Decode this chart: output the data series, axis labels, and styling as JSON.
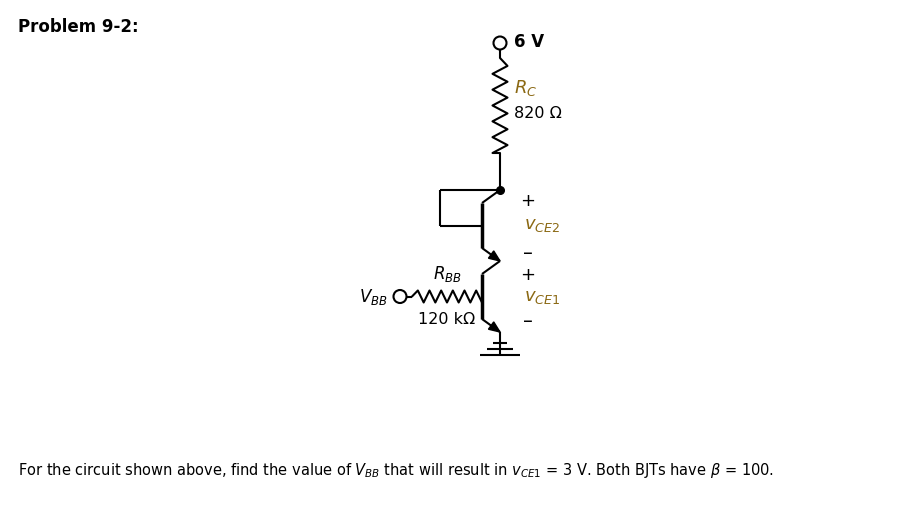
{
  "title": "Problem 9-2:",
  "background_color": "#ffffff",
  "line_color": "#000000",
  "orange_color": "#8B6914",
  "caption": "For the circuit shown above, find the value of $V_{BB}$ that will result in $v_{CE1}$ = 3 V. Both BJTs have $\\beta$ = 100.",
  "supply_voltage": "6 V",
  "rc_label": "$R_C$",
  "rc_value": "820 Ω",
  "rbb_label": "$R_{BB}$",
  "rbb_value": "120 kΩ",
  "vbb_label": "$V_{BB}$",
  "vce2_plus": "+",
  "vce2_label": "$v_{CE2}$",
  "vce2_minus": "–",
  "vce1_plus": "+",
  "vce1_label": "$v_{CE1}$",
  "vce1_minus": "–",
  "figw": 9.03,
  "figh": 5.08,
  "dpi": 100
}
